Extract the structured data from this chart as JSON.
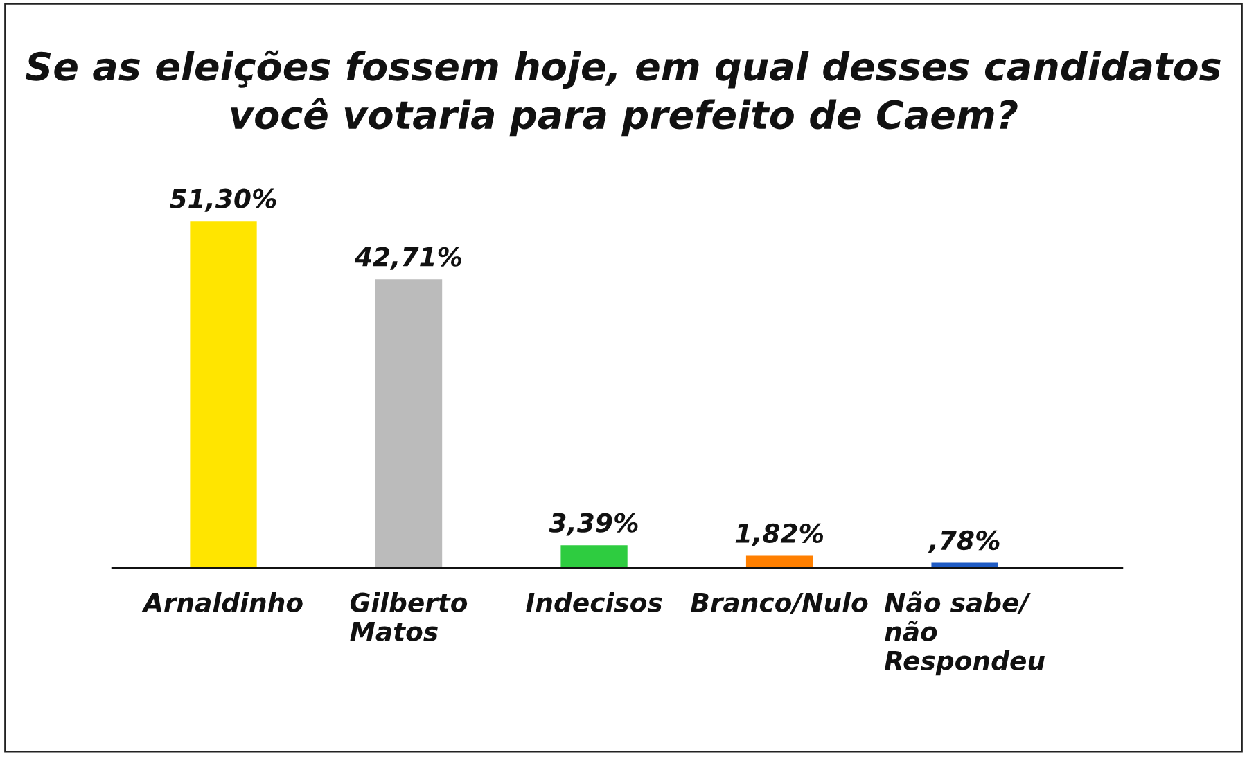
{
  "chart_data": {
    "type": "bar",
    "title": "Se as eleições fossem hoje, em qual desses candidatos\nvocê votaria para prefeito de Caem?",
    "categories": [
      "Arnaldinho",
      "Gilberto\nMatos",
      "Indecisos",
      "Branco/Nulo",
      "Não sabe/\nnão\nRespondeu"
    ],
    "values": [
      51.3,
      42.71,
      3.39,
      1.82,
      0.78
    ],
    "value_labels": [
      "51,30%",
      "42,71%",
      "3,39%",
      "1,82%",
      ",78%"
    ],
    "colors": [
      "#ffe500",
      "#bbbbbb",
      "#2ecc40",
      "#ff7f00",
      "#1f5bc4"
    ],
    "grid": false,
    "legend": false
  }
}
